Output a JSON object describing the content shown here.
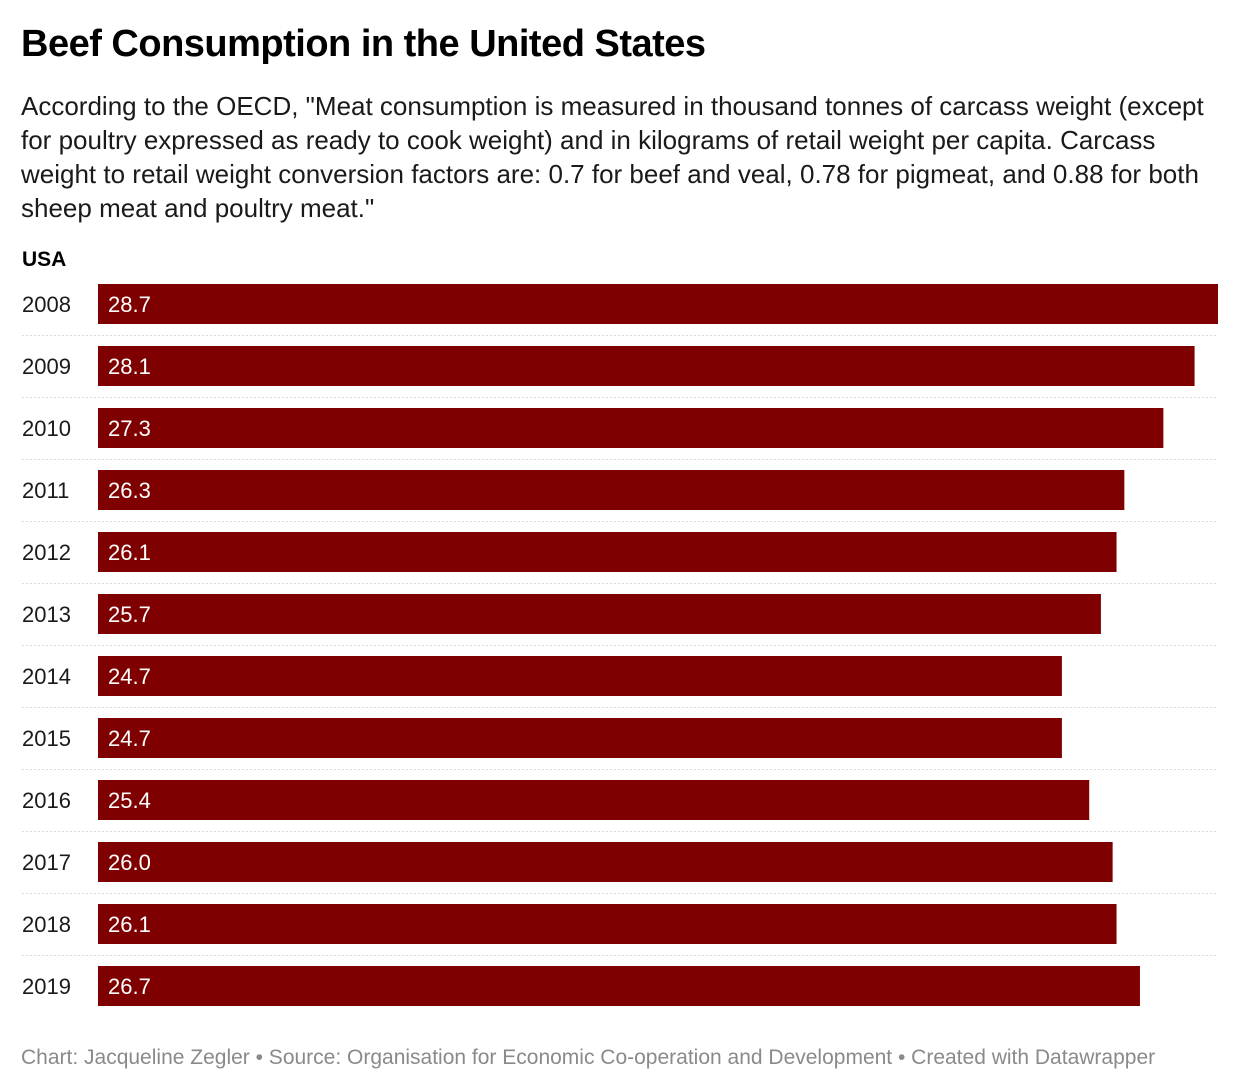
{
  "title": "Beef Consumption in the United States",
  "subtitle": "According to the OECD, \"Meat consumption is measured in thousand tonnes of carcass weight (except for poultry expressed as ready to cook weight) and in kilograms of retail weight per capita. Carcass weight to retail weight conversion factors are: 0.7 for beef and veal, 0.78 for pigmeat, and 0.88 for both sheep meat and poultry meat.\"",
  "footer": "Chart: Jacqueline Zegler • Source: Organisation for Economic Co-operation and Development • Created with Datawrapper",
  "colors": {
    "bar": "#7f0000",
    "bar_label": "#ffffff",
    "divider": "#d9d9d9"
  },
  "chart_data": {
    "type": "bar",
    "orientation": "horizontal",
    "column_header": "USA",
    "categories": [
      "2008",
      "2009",
      "2010",
      "2011",
      "2012",
      "2013",
      "2014",
      "2015",
      "2016",
      "2017",
      "2018",
      "2019"
    ],
    "values": [
      28.7,
      28.1,
      27.3,
      26.3,
      26.1,
      25.7,
      24.7,
      24.7,
      25.4,
      26.0,
      26.1,
      26.7
    ],
    "value_labels": [
      "28.7",
      "28.1",
      "27.3",
      "26.3",
      "26.1",
      "25.7",
      "24.7",
      "24.7",
      "25.4",
      "26.0",
      "26.1",
      "26.7"
    ],
    "xlim": [
      0,
      28.7
    ],
    "grid": false,
    "value_labels_position": "inside-left"
  }
}
